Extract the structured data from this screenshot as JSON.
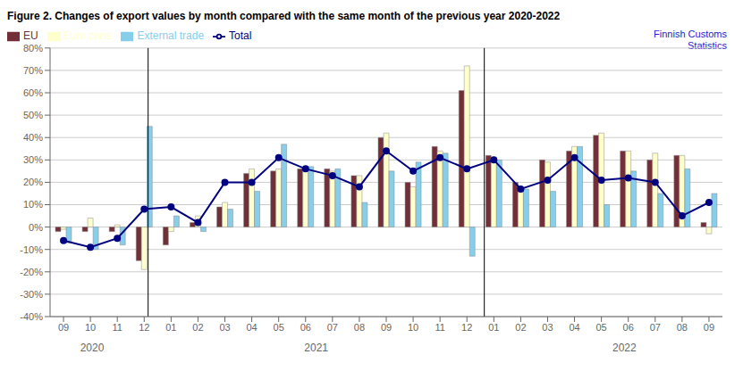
{
  "chart_data": {
    "type": "bar",
    "title": "Figure 2. Changes of export values by month compared with the same month of the previous year 2020-2022",
    "watermark": "Finnish Customs\nStatistics",
    "categories": [
      "09",
      "10",
      "11",
      "12",
      "01",
      "02",
      "03",
      "04",
      "05",
      "06",
      "07",
      "08",
      "09",
      "10",
      "11",
      "12",
      "01",
      "02",
      "03",
      "04",
      "05",
      "06",
      "07",
      "08",
      "09"
    ],
    "series": [
      {
        "name": "EU",
        "type": "bar",
        "color": "#722F37",
        "values": [
          -2,
          -2,
          -2,
          -15,
          -8,
          2,
          9,
          24,
          25,
          26,
          26,
          23,
          40,
          20,
          36,
          61,
          32,
          20,
          30,
          34,
          41,
          34,
          30,
          32,
          2
        ]
      },
      {
        "name": "Euro zone",
        "type": "bar",
        "color": "#FFFFCC",
        "values": [
          -1,
          4,
          1,
          -19,
          -2,
          5,
          11,
          26,
          26,
          25,
          25,
          23,
          42,
          18,
          34,
          72,
          31,
          17,
          29,
          36,
          42,
          34,
          33,
          32,
          -3
        ]
      },
      {
        "name": "External trade",
        "type": "bar",
        "color": "#87CEEB",
        "values": [
          -7,
          -10,
          -8,
          45,
          5,
          -2,
          8,
          16,
          37,
          27,
          26,
          11,
          25,
          29,
          33,
          -13,
          30,
          17,
          16,
          36,
          10,
          25,
          15,
          26,
          15
        ]
      },
      {
        "name": "Total",
        "type": "line",
        "color": "#000080",
        "marker": "circle",
        "values": [
          -6,
          -9,
          -5,
          8,
          9,
          2,
          20,
          20,
          31,
          26,
          23,
          18,
          34,
          25,
          31,
          26,
          30,
          17,
          21,
          31,
          21,
          22,
          20,
          5,
          11
        ]
      }
    ],
    "year_dividers": [
      3.5,
      15.5
    ],
    "year_labels": [
      {
        "label": "2020",
        "x": 1.5
      },
      {
        "label": "2021",
        "x": 9.5
      },
      {
        "label": "2022",
        "x": 20.5
      }
    ],
    "ylim": [
      -40,
      80
    ],
    "yticks": [
      {
        "value": -40,
        "label": "-40%"
      },
      {
        "value": -30,
        "label": "-30%"
      },
      {
        "value": -20,
        "label": "-20%"
      },
      {
        "value": -10,
        "label": "-10%"
      },
      {
        "value": 0,
        "label": "0%"
      },
      {
        "value": 10,
        "label": "10%"
      },
      {
        "value": 20,
        "label": "20%"
      },
      {
        "value": 30,
        "label": "30%"
      },
      {
        "value": 40,
        "label": "40%"
      },
      {
        "value": 50,
        "label": "50%"
      },
      {
        "value": 60,
        "label": "60%"
      },
      {
        "value": 70,
        "label": "70%"
      },
      {
        "value": 80,
        "label": "80%"
      }
    ],
    "grid": true,
    "legend": "upper left"
  }
}
